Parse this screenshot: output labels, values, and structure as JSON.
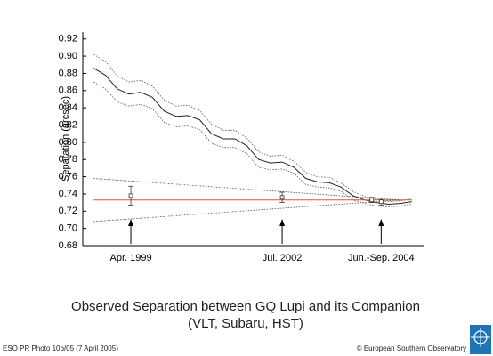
{
  "chart_data": {
    "type": "line",
    "title": "Observed Separation between GQ Lupi and its Companion",
    "subtitle": "(VLT, Subaru, HST)",
    "ylabel": "Separation (arcsec)",
    "ylim": [
      0.68,
      0.928
    ],
    "yticks": [
      0.68,
      {
        "value": 0.7,
        "label": "0.70"
      },
      0.72,
      0.74,
      0.76,
      0.78,
      {
        "value": 0.8,
        "label": "0.80"
      },
      0.82,
      0.84,
      0.86,
      0.88,
      {
        "value": 0.9,
        "label": "0.90"
      },
      0.92
    ],
    "xlim": [
      1998.27,
      2005.5
    ],
    "xticks": [
      {
        "value": 1999.29,
        "label": "Apr. 1999"
      },
      {
        "value": 2002.5,
        "label": "Jul. 2002"
      },
      {
        "value": 2004.6,
        "label": "Jun.-Sep. 2004"
      }
    ],
    "series": [
      {
        "kind": "line",
        "dash": "solid",
        "color": "#222222",
        "x": [
          1998.5,
          1998.75,
          1999,
          1999.25,
          1999.5,
          1999.75,
          2000,
          2000.25,
          2000.5,
          2000.75,
          2001,
          2001.25,
          2001.5,
          2001.75,
          2002,
          2002.25,
          2002.5,
          2002.75,
          2003,
          2003.25,
          2003.5,
          2003.75,
          2004,
          2004.25,
          2004.5,
          2004.75,
          2005,
          2005.25
        ],
        "values": [
          0.886,
          0.878,
          0.862,
          0.856,
          0.858,
          0.852,
          0.836,
          0.83,
          0.831,
          0.826,
          0.81,
          0.804,
          0.804,
          0.796,
          0.78,
          0.776,
          0.777,
          0.771,
          0.758,
          0.754,
          0.753,
          0.748,
          0.738,
          0.733,
          0.73,
          0.728,
          0.729,
          0.731
        ]
      },
      {
        "kind": "line",
        "dash": "dotted",
        "color": "#555555",
        "x": [
          1998.5,
          1998.75,
          1999,
          1999.25,
          1999.5,
          1999.75,
          2000,
          2000.25,
          2000.5,
          2000.75,
          2001,
          2001.25,
          2001.5,
          2001.75,
          2002,
          2002.25,
          2002.5,
          2002.75,
          2003,
          2003.25,
          2003.5,
          2003.75,
          2004,
          2004.25,
          2004.5,
          2004.75,
          2005,
          2005.25
        ],
        "values": [
          0.902,
          0.894,
          0.877,
          0.87,
          0.872,
          0.865,
          0.849,
          0.842,
          0.843,
          0.837,
          0.821,
          0.814,
          0.814,
          0.805,
          0.789,
          0.784,
          0.785,
          0.778,
          0.765,
          0.76,
          0.759,
          0.753,
          0.743,
          0.737,
          0.734,
          0.731,
          0.732,
          0.734
        ]
      },
      {
        "kind": "line",
        "dash": "dotted",
        "color": "#555555",
        "x": [
          1998.5,
          1998.75,
          1999,
          1999.25,
          1999.5,
          1999.75,
          2000,
          2000.25,
          2000.5,
          2000.75,
          2001,
          2001.25,
          2001.5,
          2001.75,
          2002,
          2002.25,
          2002.5,
          2002.75,
          2003,
          2003.25,
          2003.5,
          2003.75,
          2004,
          2004.25,
          2004.5,
          2004.75,
          2005,
          2005.25
        ],
        "values": [
          0.87,
          0.862,
          0.847,
          0.842,
          0.844,
          0.839,
          0.823,
          0.818,
          0.819,
          0.815,
          0.799,
          0.794,
          0.794,
          0.787,
          0.771,
          0.768,
          0.769,
          0.764,
          0.751,
          0.748,
          0.747,
          0.743,
          0.733,
          0.729,
          0.726,
          0.725,
          0.726,
          0.728
        ]
      },
      {
        "kind": "line",
        "dash": "solid",
        "color": "#e0533a",
        "x": [
          1998.5,
          2005.25
        ],
        "values": [
          0.733,
          0.733
        ]
      },
      {
        "kind": "line",
        "dash": "dotted",
        "color": "#555555",
        "x": [
          1998.5,
          2005.0
        ],
        "values": [
          0.758,
          0.733
        ]
      },
      {
        "kind": "line",
        "dash": "dotted",
        "color": "#555555",
        "x": [
          1998.5,
          2005.0
        ],
        "values": [
          0.708,
          0.733
        ]
      },
      {
        "kind": "scatter",
        "color": "#333333",
        "x": [
          1999.29,
          2002.5,
          2004.4,
          2004.6
        ],
        "values": [
          0.738,
          0.736,
          0.733,
          0.731
        ],
        "errors": [
          0.011,
          0.006,
          0.003,
          0.004
        ]
      }
    ]
  },
  "footer": {
    "left": "ESO PR Photo 10b/05 (7 April 2005)",
    "right": "© European Southern Observatory"
  }
}
